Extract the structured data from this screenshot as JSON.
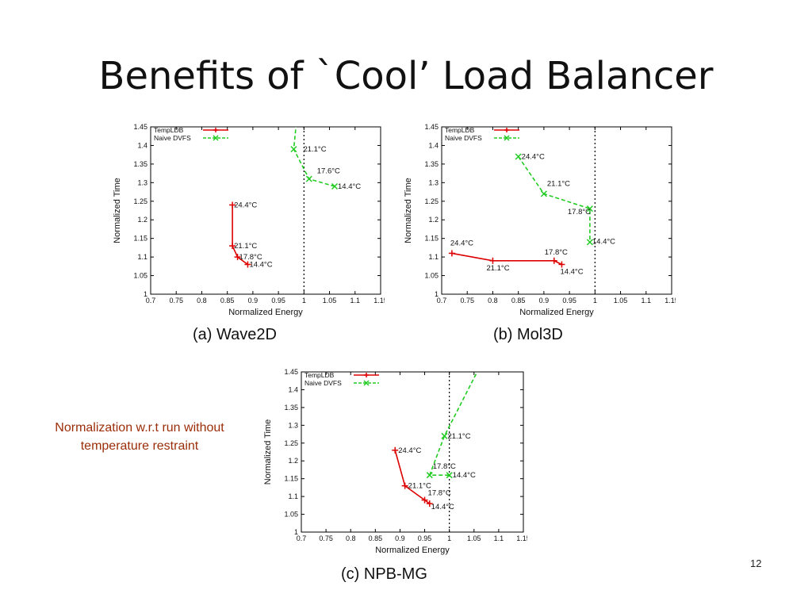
{
  "slide": {
    "title": "Benefits of `Cool’ Load Balancer",
    "note": "Normalization w.r.t run without temperature restraint",
    "page_number": "12"
  },
  "colors": {
    "templdb": "#dd0000",
    "naive": "#22cc22",
    "axis": "#000000",
    "ref_line": "#000000"
  },
  "chart_data": [
    {
      "id": "wave2d",
      "type": "line",
      "caption": "(a) Wave2D",
      "xlabel": "Normalized Energy",
      "ylabel": "Normalized Time",
      "xlim": [
        0.7,
        1.15
      ],
      "ylim": [
        1.0,
        1.45
      ],
      "xticks": [
        0.7,
        0.75,
        0.8,
        0.85,
        0.9,
        0.95,
        1,
        1.05,
        1.1,
        1.15
      ],
      "yticks": [
        1,
        1.05,
        1.1,
        1.15,
        1.2,
        1.25,
        1.3,
        1.35,
        1.4,
        1.45
      ],
      "reference_x": 1.0,
      "legend_position": "top-left",
      "series": [
        {
          "name": "TempLDB",
          "style": "solid",
          "marker": "plus",
          "points": [
            {
              "x": 0.86,
              "y": 1.24,
              "label": "24.4°C"
            },
            {
              "x": 0.86,
              "y": 1.13,
              "label": "21.1°C"
            },
            {
              "x": 0.87,
              "y": 1.1,
              "label": "17.8°C"
            },
            {
              "x": 0.89,
              "y": 1.08,
              "label": "14.4°C"
            }
          ]
        },
        {
          "name": "Naive DVFS",
          "style": "dashed",
          "marker": "x",
          "points": [
            {
              "x": 0.985,
              "y": 1.46,
              "label": ""
            },
            {
              "x": 0.98,
              "y": 1.39,
              "label": "21.1°C"
            },
            {
              "x": 1.01,
              "y": 1.31,
              "label": "17.6°C"
            },
            {
              "x": 1.06,
              "y": 1.29,
              "label": "14.4°C"
            }
          ]
        }
      ]
    },
    {
      "id": "mol3d",
      "type": "line",
      "caption": "(b) Mol3D",
      "xlabel": "Normalized Energy",
      "ylabel": "Normalized Time",
      "xlim": [
        0.7,
        1.15
      ],
      "ylim": [
        1.0,
        1.45
      ],
      "xticks": [
        0.7,
        0.75,
        0.8,
        0.85,
        0.9,
        0.95,
        1,
        1.05,
        1.1,
        1.15
      ],
      "yticks": [
        1,
        1.05,
        1.1,
        1.15,
        1.2,
        1.25,
        1.3,
        1.35,
        1.4,
        1.45
      ],
      "reference_x": 1.0,
      "legend_position": "top-left",
      "series": [
        {
          "name": "TempLDB",
          "style": "solid",
          "marker": "plus",
          "points": [
            {
              "x": 0.72,
              "y": 1.11,
              "label": "24.4°C"
            },
            {
              "x": 0.8,
              "y": 1.09,
              "label": "21.1°C"
            },
            {
              "x": 0.92,
              "y": 1.09,
              "label": "17.8°C"
            },
            {
              "x": 0.935,
              "y": 1.08,
              "label": "14.4°C"
            }
          ]
        },
        {
          "name": "Naive DVFS",
          "style": "dashed",
          "marker": "x",
          "points": [
            {
              "x": 0.85,
              "y": 1.37,
              "label": "24.4°C"
            },
            {
              "x": 0.9,
              "y": 1.27,
              "label": "21.1°C"
            },
            {
              "x": 0.99,
              "y": 1.23,
              "label": "17.8°C"
            },
            {
              "x": 0.99,
              "y": 1.14,
              "label": "14.4°C"
            }
          ]
        }
      ]
    },
    {
      "id": "npbmg",
      "type": "line",
      "caption": "(c) NPB-MG",
      "xlabel": "Normalized Energy",
      "ylabel": "Normalized Time",
      "xlim": [
        0.7,
        1.15
      ],
      "ylim": [
        1.0,
        1.45
      ],
      "xticks": [
        0.7,
        0.75,
        0.8,
        0.85,
        0.9,
        0.95,
        1,
        1.05,
        1.1,
        1.15
      ],
      "yticks": [
        1,
        1.05,
        1.1,
        1.15,
        1.2,
        1.25,
        1.3,
        1.35,
        1.4,
        1.45
      ],
      "reference_x": 1.0,
      "legend_position": "top-left",
      "series": [
        {
          "name": "TempLDB",
          "style": "solid",
          "marker": "plus",
          "points": [
            {
              "x": 0.89,
              "y": 1.23,
              "label": "24.4°C"
            },
            {
              "x": 0.91,
              "y": 1.13,
              "label": "21.1°C"
            },
            {
              "x": 0.95,
              "y": 1.09,
              "label": "17.8°C"
            },
            {
              "x": 0.96,
              "y": 1.08,
              "label": "14.4°C"
            }
          ]
        },
        {
          "name": "Naive DVFS",
          "style": "dashed",
          "marker": "x",
          "points": [
            {
              "x": 1.06,
              "y": 1.46,
              "label": ""
            },
            {
              "x": 0.99,
              "y": 1.27,
              "label": "21.1°C"
            },
            {
              "x": 0.96,
              "y": 1.16,
              "label": "17.8°C"
            },
            {
              "x": 1.0,
              "y": 1.16,
              "label": "14.4°C"
            }
          ]
        }
      ]
    }
  ]
}
